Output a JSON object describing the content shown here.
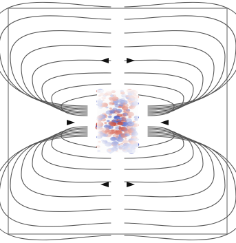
{
  "figure": {
    "kind": "magnetic field line diagram with central turbulent velocity field",
    "frame_color": "#777777",
    "field_line_color": "#555555",
    "arrow_color": "#111111",
    "colormap": {
      "positive": "#c8331e",
      "negative": "#2a3fb8",
      "neutral": "#f2f2f2"
    },
    "arrows": [
      {
        "name": "arrow-top-left",
        "direction": "left"
      },
      {
        "name": "arrow-top-right",
        "direction": "right"
      },
      {
        "name": "arrow-mid-left",
        "direction": "right"
      },
      {
        "name": "arrow-mid-right",
        "direction": "left"
      },
      {
        "name": "arrow-bottom-left",
        "direction": "left"
      },
      {
        "name": "arrow-bottom-right",
        "direction": "right"
      }
    ]
  }
}
